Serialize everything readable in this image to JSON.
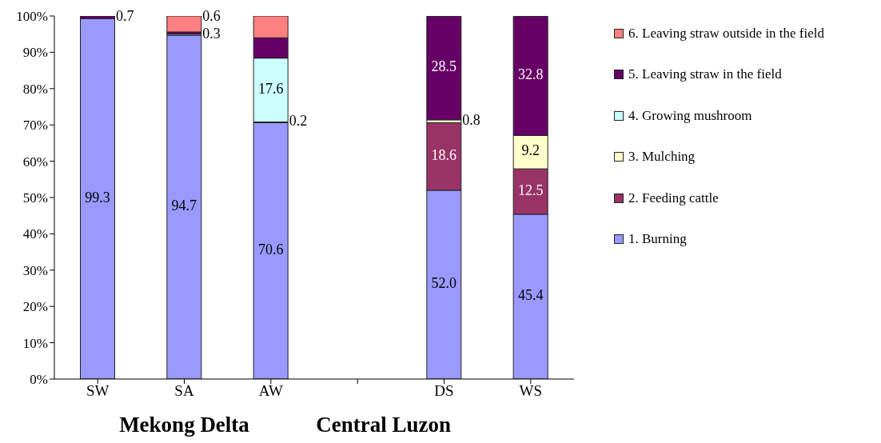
{
  "chart_data": {
    "type": "bar",
    "stacked": true,
    "categories": [
      "SW",
      "SA",
      "AW",
      null,
      "DS",
      "WS"
    ],
    "series": [
      {
        "name": "1. Burning",
        "color": "#9999ff",
        "values": [
          99.3,
          94.7,
          70.6,
          null,
          52.0,
          45.4
        ],
        "value_labels": [
          "99.3",
          "94.7",
          "70.6",
          null,
          "52.0",
          "45.4"
        ]
      },
      {
        "name": "2. Feeding cattle",
        "color": "#993366",
        "values": [
          null,
          null,
          0.2,
          null,
          18.6,
          12.5
        ],
        "value_labels": [
          null,
          null,
          "0.2",
          null,
          "18.6",
          "12.5"
        ]
      },
      {
        "name": "3. Mulching",
        "color": "#ffffcc",
        "values": [
          null,
          null,
          null,
          null,
          0.8,
          9.2
        ],
        "value_labels": [
          null,
          null,
          null,
          null,
          "0.8",
          "9.2"
        ]
      },
      {
        "name": "4. Growing mushroom",
        "color": "#ccffff",
        "values": [
          null,
          0.3,
          17.6,
          null,
          null,
          null
        ],
        "value_labels": [
          null,
          "0.3",
          "17.6",
          null,
          null,
          null
        ]
      },
      {
        "name": "5. Leaving straw in the field",
        "color": "#660066",
        "values": [
          0.7,
          0.6,
          5.6,
          null,
          28.5,
          32.8
        ],
        "value_labels": [
          "0.7",
          "0.6",
          null,
          null,
          "28.5",
          "32.8"
        ]
      },
      {
        "name": "6. Leaving straw outside in the field",
        "color": "#ff8080",
        "values": [
          null,
          4.4,
          6.0,
          null,
          null,
          null
        ]
      }
    ],
    "ylim": [
      0,
      100
    ],
    "yticks": [
      {
        "value": 0,
        "label": "0%"
      },
      {
        "value": 10,
        "label": "10%"
      },
      {
        "value": 20,
        "label": "20%"
      },
      {
        "value": 30,
        "label": "30%"
      },
      {
        "value": 40,
        "label": "40%"
      },
      {
        "value": 50,
        "label": "50%"
      },
      {
        "value": 60,
        "label": "60%"
      },
      {
        "value": 70,
        "label": "70%"
      },
      {
        "value": 80,
        "label": "80%"
      },
      {
        "value": 90,
        "label": "90%"
      },
      {
        "value": 100,
        "label": "100%"
      }
    ],
    "grid": false,
    "legend": "right",
    "annotations": [
      "Mekong Delta",
      "Central Luzon"
    ]
  }
}
